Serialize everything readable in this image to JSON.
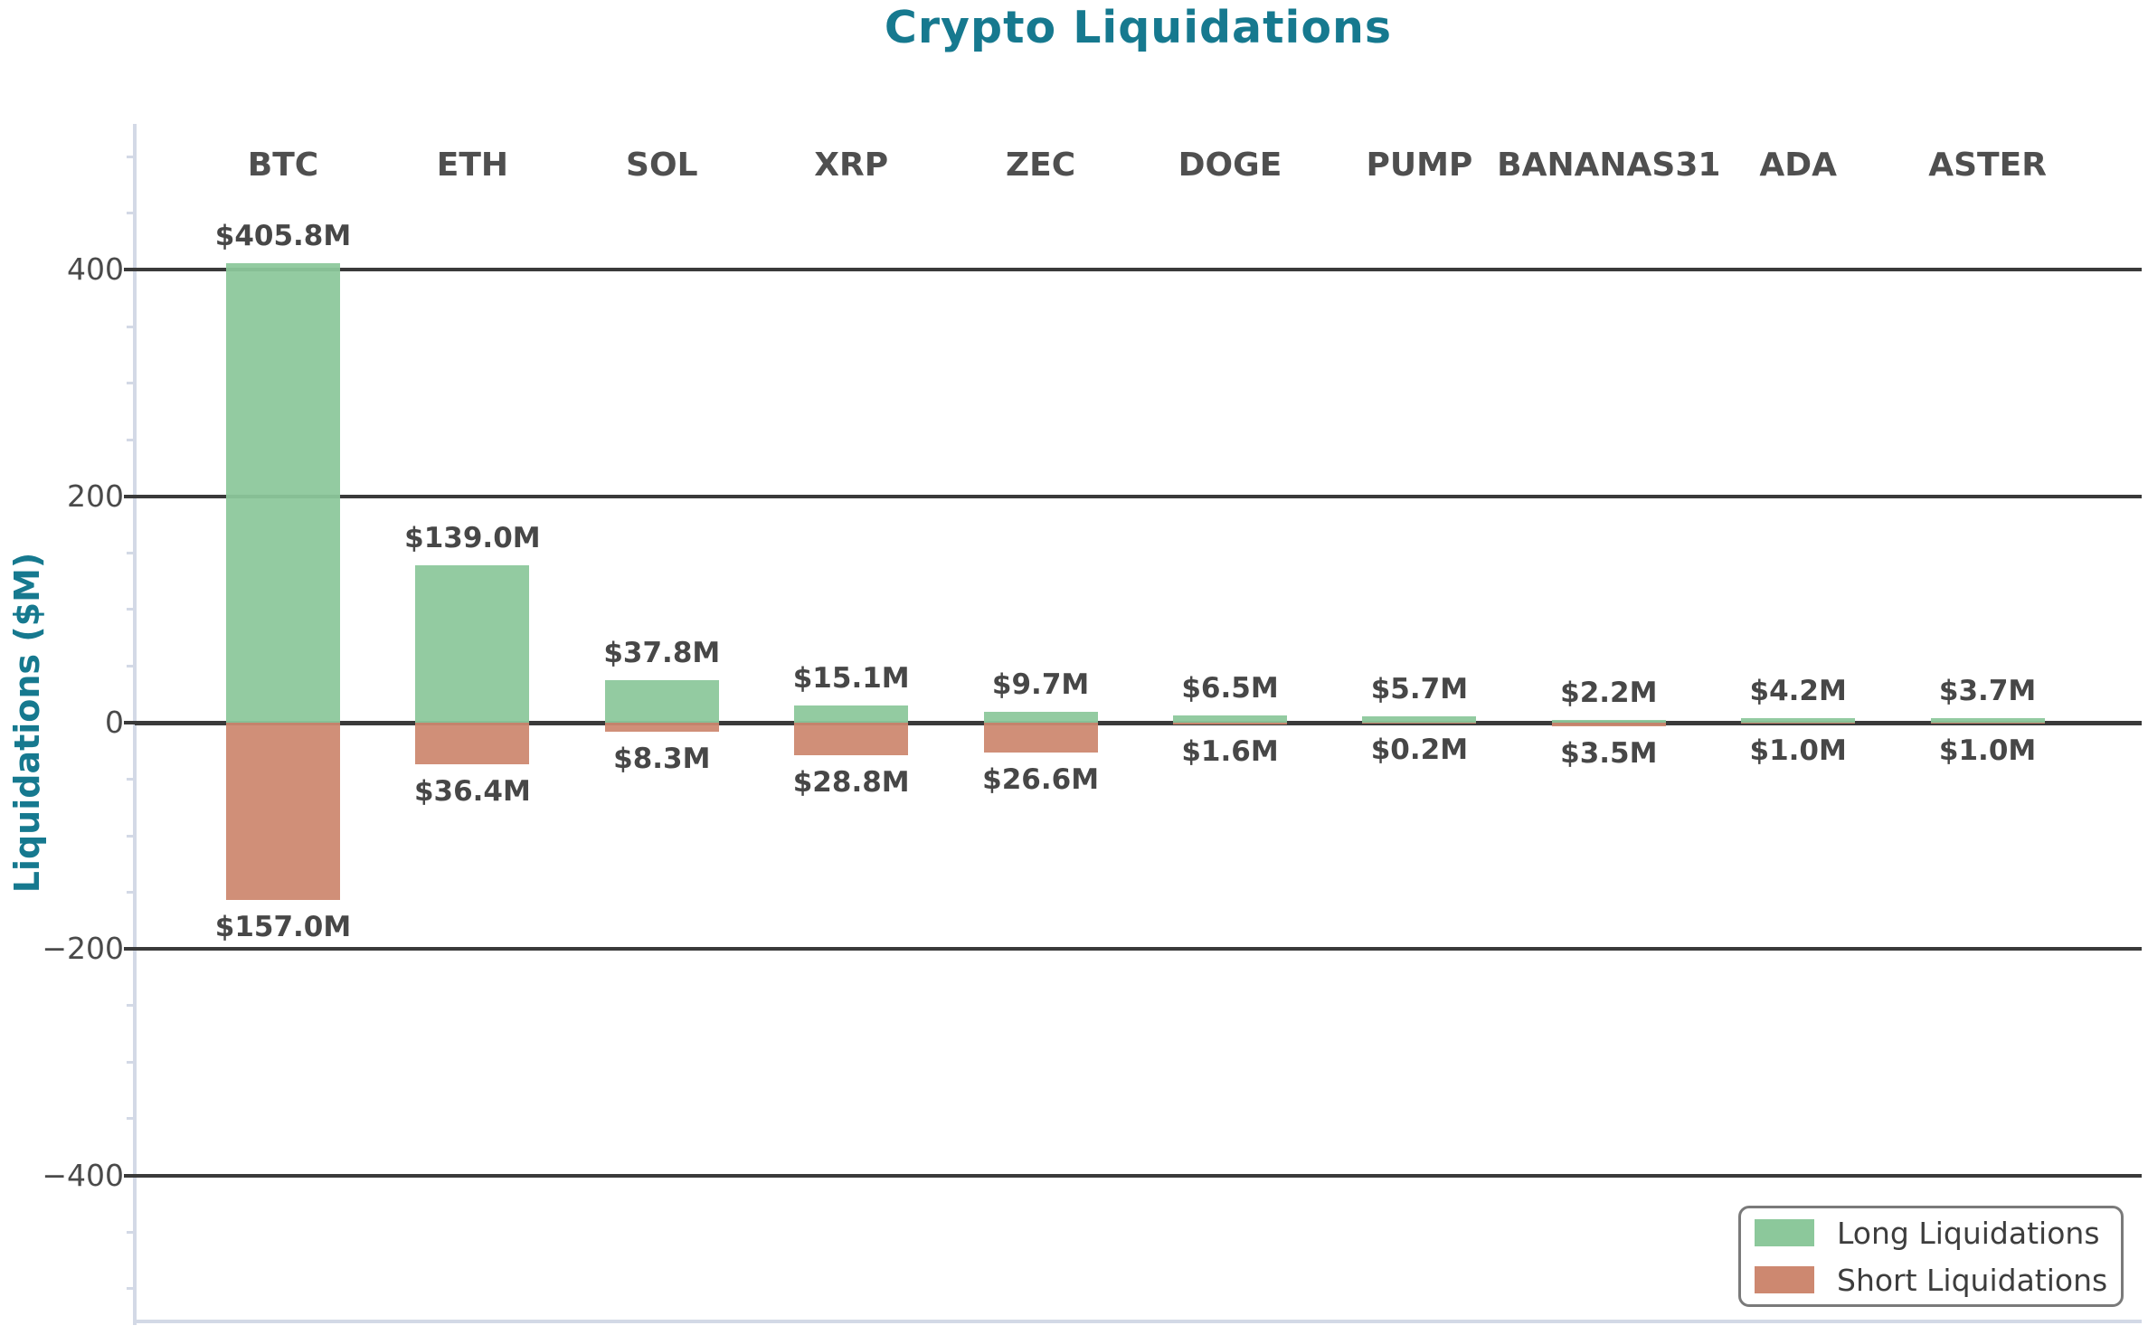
{
  "chart_data": {
    "type": "bar",
    "title": "Crypto Liquidations",
    "ylabel": "Liquidations ($M)",
    "categories": [
      "BTC",
      "ETH",
      "SOL",
      "XRP",
      "ZEC",
      "DOGE",
      "PUMP",
      "BANANAS31",
      "ADA",
      "ASTER"
    ],
    "series": [
      {
        "name": "Long Liquidations",
        "direction": "positive",
        "color": "#8cc89b",
        "values": [
          405.8,
          139.0,
          37.8,
          15.1,
          9.7,
          6.5,
          5.7,
          2.2,
          4.2,
          3.7
        ],
        "labels": [
          "$405.8M",
          "$139.0M",
          "$37.8M",
          "$15.1M",
          "$9.7M",
          "$6.5M",
          "$5.7M",
          "$2.2M",
          "$4.2M",
          "$3.7M"
        ]
      },
      {
        "name": "Short Liquidations",
        "direction": "negative",
        "color": "#cd8870",
        "values": [
          157.0,
          36.4,
          8.3,
          28.8,
          26.6,
          1.6,
          0.2,
          3.5,
          1.0,
          1.0
        ],
        "labels": [
          "$157.0M",
          "$36.4M",
          "$8.3M",
          "$28.8M",
          "$26.6M",
          "$1.6M",
          "$0.2M",
          "$3.5M",
          "$1.0M",
          "$1.0M"
        ]
      }
    ],
    "yaxis": {
      "ticks": [
        400,
        200,
        0,
        -200,
        -400
      ],
      "tick_labels": [
        "400",
        "200",
        "0",
        "−200",
        "−400"
      ],
      "minor_tick_step": 50,
      "ylim": [
        -529,
        529
      ]
    },
    "grid": {
      "horizontal_major": true
    },
    "legend": {
      "position": "lower-right",
      "entries": [
        "Long Liquidations",
        "Short Liquidations"
      ]
    },
    "colors": {
      "title": "#16798f",
      "ylabel": "#16798f",
      "long": "#8cc89b",
      "short": "#cd8870",
      "gridline": "#3a3a3a",
      "tick_label": "#4a4a4a",
      "value_label": "#474747",
      "category_label": "#4f4f4f",
      "spine": "#d3d9e6",
      "legend_border": "#7a7a7a",
      "legend_text": "#3d3d3d"
    }
  }
}
